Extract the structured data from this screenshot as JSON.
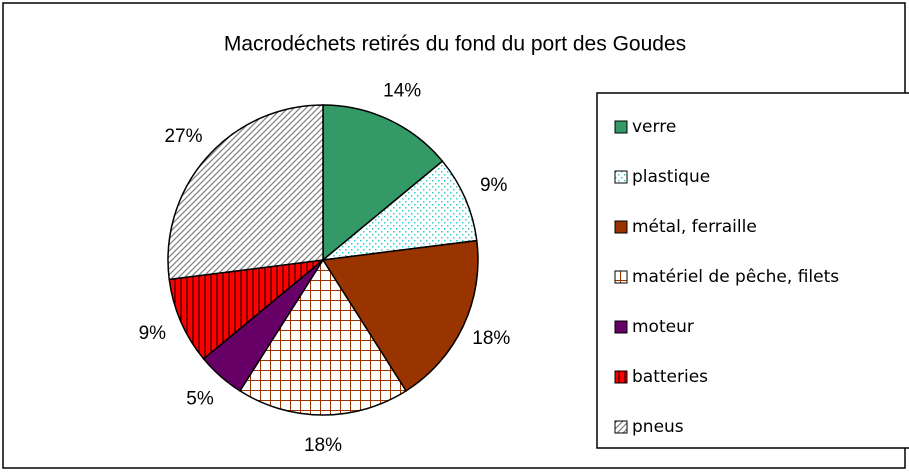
{
  "chart_data": {
    "type": "pie",
    "title": "Macrodéchets retirés du fond du port des Goudes",
    "categories": [
      "verre",
      "plastique",
      "métal, ferraille",
      "matériel de pêche, filets",
      "moteur",
      "batteries",
      "pneus"
    ],
    "values": [
      14,
      9,
      18,
      18,
      5,
      9,
      27
    ],
    "value_labels": [
      "14%",
      "9%",
      "18%",
      "18%",
      "5%",
      "9%",
      "27%"
    ],
    "colors": [
      "#339966",
      "#33cccc",
      "#993300",
      "#993300",
      "#660066",
      "#ff0000",
      "#808080"
    ],
    "legend": "right"
  }
}
